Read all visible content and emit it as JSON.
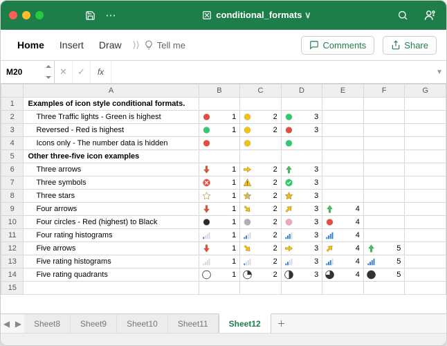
{
  "title": "conditional_formats",
  "menu": {
    "home": "Home",
    "insert": "Insert",
    "draw": "Draw",
    "tellme": "Tell me",
    "comments": "Comments",
    "share": "Share"
  },
  "namebox": "M20",
  "colHeaders": [
    "A",
    "B",
    "C",
    "D",
    "E",
    "F",
    "G"
  ],
  "rows": [
    {
      "n": 1,
      "label": "Examples of icon style conditional formats.",
      "bold": true,
      "cells": []
    },
    {
      "n": 2,
      "label": "Three Traffic lights - Green is highest",
      "indent": true,
      "cells": [
        {
          "i": "tl-red",
          "v": 1
        },
        {
          "i": "tl-yellow",
          "v": 2
        },
        {
          "i": "tl-green",
          "v": 3
        }
      ]
    },
    {
      "n": 3,
      "label": "Reversed - Red is highest",
      "indent": true,
      "cells": [
        {
          "i": "tl-green",
          "v": 1
        },
        {
          "i": "tl-yellow",
          "v": 2
        },
        {
          "i": "tl-red",
          "v": 3
        }
      ]
    },
    {
      "n": 4,
      "label": "Icons only - The number data is hidden",
      "indent": true,
      "cells": [
        {
          "i": "tl-red"
        },
        {
          "i": "tl-yellow"
        },
        {
          "i": "tl-green"
        }
      ]
    },
    {
      "n": 5,
      "label": "Other three-five icon examples",
      "bold": true,
      "cells": []
    },
    {
      "n": 6,
      "label": "Three arrows",
      "indent": true,
      "cells": [
        {
          "i": "arr-down-red",
          "v": 1
        },
        {
          "i": "arr-right-yel",
          "v": 2
        },
        {
          "i": "arr-up-grn",
          "v": 3
        }
      ]
    },
    {
      "n": 7,
      "label": "Three symbols",
      "indent": true,
      "cells": [
        {
          "i": "sym-x",
          "v": 1
        },
        {
          "i": "sym-excl",
          "v": 2
        },
        {
          "i": "sym-check",
          "v": 3
        }
      ]
    },
    {
      "n": 8,
      "label": "Three stars",
      "indent": true,
      "cells": [
        {
          "i": "star-empty",
          "v": 1
        },
        {
          "i": "star-half",
          "v": 2
        },
        {
          "i": "star-full",
          "v": 3
        }
      ]
    },
    {
      "n": 9,
      "label": "Four arrows",
      "indent": true,
      "cells": [
        {
          "i": "arr-down-red",
          "v": 1
        },
        {
          "i": "arr-dr-yel",
          "v": 2
        },
        {
          "i": "arr-ur-yel",
          "v": 3
        },
        {
          "i": "arr-up-grn",
          "v": 4
        }
      ]
    },
    {
      "n": 10,
      "label": "Four circles - Red (highest) to Black",
      "indent": true,
      "cells": [
        {
          "i": "circ-black",
          "v": 1
        },
        {
          "i": "circ-gray",
          "v": 2
        },
        {
          "i": "circ-pink",
          "v": 3
        },
        {
          "i": "circ-red",
          "v": 4
        }
      ]
    },
    {
      "n": 11,
      "label": "Four rating histograms",
      "indent": true,
      "cells": [
        {
          "i": "hist-1",
          "v": 1
        },
        {
          "i": "hist-2",
          "v": 2
        },
        {
          "i": "hist-3",
          "v": 3
        },
        {
          "i": "hist-4",
          "v": 4
        }
      ]
    },
    {
      "n": 12,
      "label": "Five arrows",
      "indent": true,
      "cells": [
        {
          "i": "arr-down-red",
          "v": 1
        },
        {
          "i": "arr-dr-yel",
          "v": 2
        },
        {
          "i": "arr-right-yel",
          "v": 3
        },
        {
          "i": "arr-ur-yel",
          "v": 4
        },
        {
          "i": "arr-up-grn",
          "v": 5
        }
      ]
    },
    {
      "n": 13,
      "label": "Five rating histograms",
      "indent": true,
      "cells": [
        {
          "i": "hist-0",
          "v": 1
        },
        {
          "i": "hist-1",
          "v": 2
        },
        {
          "i": "hist-2",
          "v": 3
        },
        {
          "i": "hist-3",
          "v": 4
        },
        {
          "i": "hist-4",
          "v": 5
        }
      ]
    },
    {
      "n": 14,
      "label": "Five rating quadrants",
      "indent": true,
      "cells": [
        {
          "i": "quad-0",
          "v": 1
        },
        {
          "i": "quad-1",
          "v": 2
        },
        {
          "i": "quad-2",
          "v": 3
        },
        {
          "i": "quad-3",
          "v": 4
        },
        {
          "i": "quad-4",
          "v": 5
        }
      ]
    },
    {
      "n": 15,
      "label": "",
      "cells": []
    }
  ],
  "sheets": [
    "Sheet8",
    "Sheet9",
    "Sheet10",
    "Sheet11",
    "Sheet12"
  ],
  "activeSheet": "Sheet12",
  "colors": {
    "red": "#e74c3c",
    "yellow": "#f1c40f",
    "green": "#2ecc71",
    "gray": "#b0b0b0",
    "pink": "#f5a5b8",
    "black": "#2b2b2b",
    "blue": "#2f7ed8",
    "goldStar": "#e8b923",
    "grayStar": "#b8b8b8"
  }
}
